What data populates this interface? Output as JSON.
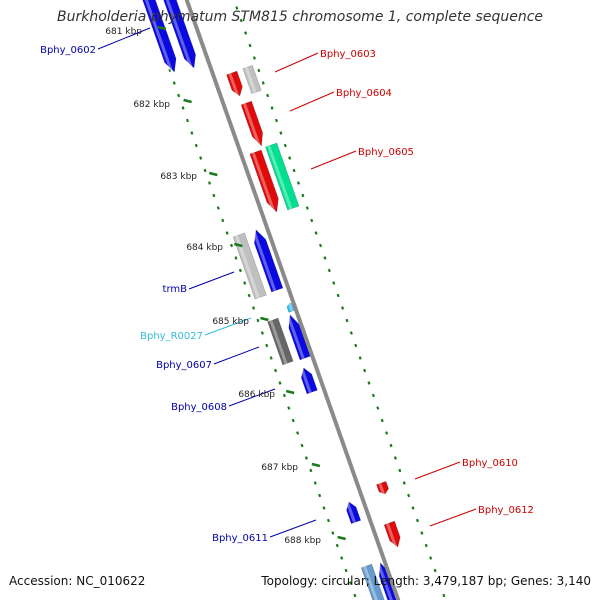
{
  "title": "Burkholderia phymatum STM815 chromosome 1, complete sequence",
  "footer": {
    "accession": "Accession: NC_010622",
    "summary": "Topology: circular; Length: 3,479,187 bp; Genes: 3,140"
  },
  "colors": {
    "forward_cds": "#0a0ae0",
    "reverse_cds": "#e00a0a",
    "pseudo": "#c0c0c0",
    "rna": "#00e090",
    "trna": "#30c0e8",
    "backbone": "#8a8a8a",
    "ticks": "#1a7a1a",
    "label_forward": "#0000aa",
    "label_reverse": "#cc0000",
    "label_trna": "#33bbdd"
  },
  "ticks": [
    "681 kbp",
    "682 kbp",
    "683 kbp",
    "684 kbp",
    "685 kbp",
    "686 kbp",
    "687 kbp",
    "688 kbp"
  ],
  "genes": [
    {
      "name": "Bphy_0602",
      "strand": "forward"
    },
    {
      "name": "Bphy_0603",
      "strand": "reverse"
    },
    {
      "name": "Bphy_0604",
      "strand": "reverse"
    },
    {
      "name": "Bphy_0605",
      "strand": "reverse"
    },
    {
      "name": "trmB",
      "strand": "forward"
    },
    {
      "name": "Bphy_R0027",
      "strand": "forward"
    },
    {
      "name": "Bphy_0607",
      "strand": "forward"
    },
    {
      "name": "Bphy_0608",
      "strand": "forward"
    },
    {
      "name": "Bphy_0610",
      "strand": "reverse"
    },
    {
      "name": "Bphy_0611",
      "strand": "forward"
    },
    {
      "name": "Bphy_0612",
      "strand": "reverse"
    }
  ]
}
